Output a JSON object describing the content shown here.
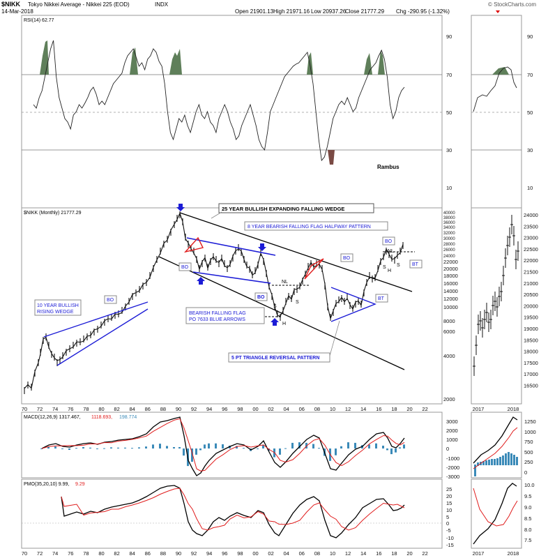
{
  "header": {
    "symbol": "$NIKK",
    "name": "Tokyo Nikkei Average - Nikkei 225 (EOD)",
    "exchange": "INDX",
    "date": "14-Mar-2018",
    "open": "Open 21901.13",
    "high": "High 21971.16",
    "low": "Low 20937.26",
    "close": "Close 21777.29",
    "chg": "Chg -290.95 (-1.32%)",
    "credit": "© StockCharts.com"
  },
  "rsi": {
    "label": "RSI(14) 62.77",
    "ticks": [
      "90",
      "70",
      "50",
      "30",
      "10"
    ],
    "signature": "Rambus"
  },
  "price": {
    "label": "$NIKK (Monthly) 21777.29",
    "left_ticks": [
      "40000",
      "38000",
      "36000",
      "34000",
      "32000",
      "30000",
      "28000",
      "26000",
      "24000",
      "22000",
      "20000",
      "18000",
      "16000",
      "14000",
      "12000",
      "10000",
      "8000",
      "6000",
      "4000",
      "2000"
    ],
    "right_ticks": [
      "24000",
      "23500",
      "23000",
      "22500",
      "22000",
      "21500",
      "21000",
      "20500",
      "20000",
      "19500",
      "19000",
      "18500",
      "18000",
      "17500",
      "17000",
      "16500"
    ]
  },
  "macd": {
    "label": "MACD(12,26,9) 1317.467,",
    "signal": "1118.693,",
    "hist": "198.774",
    "ticks": [
      "3000",
      "2000",
      "1000",
      "0",
      "-1000",
      "-2000",
      "-3000"
    ],
    "right_ticks": [
      "1250",
      "1000",
      "750",
      "500",
      "250",
      "0"
    ]
  },
  "pmo": {
    "label": "PMO(35,20,10) 9.99,",
    "signal": "9.29",
    "ticks": [
      "25",
      "20",
      "15",
      "10",
      "5",
      "0",
      "-5",
      "-10",
      "-15"
    ],
    "right_ticks": [
      "10.0",
      "9.5",
      "9.0",
      "8.5",
      "8.0",
      "7.5"
    ]
  },
  "xaxis": [
    "70",
    "72",
    "74",
    "76",
    "78",
    "80",
    "82",
    "84",
    "86",
    "88",
    "90",
    "92",
    "94",
    "96",
    "98",
    "00",
    "02",
    "04",
    "06",
    "08",
    "10",
    "12",
    "14",
    "16",
    "18",
    "20",
    "22"
  ],
  "xaxis_right": [
    "2017",
    "2018"
  ],
  "annotations": {
    "wedge_title": "25 YEAR BULLISH EXPANDING FALLING WEDGE",
    "flag_title": "8 YEAR BEARISH FALLING FLAG HALFWAY PATTERN",
    "rising_wedge": "10 YEAR BULLISH",
    "rising_wedge2": "RISING WEDGE",
    "bearish_flag": "BEARISH FALLING FLAG",
    "bearish_flag2": "PO 7633 BLUE ARROWS",
    "triangle": "5 PT TRIANGLE REVERSAL PATTERN",
    "bo": "BO",
    "bt": "BT",
    "nl": "NL",
    "s": "S",
    "h": "H"
  },
  "colors": {
    "blue": "#1c1cd6",
    "red": "#e01c1c",
    "green_fill": "#5f7f5a",
    "brown_fill": "#7a4a44",
    "hist": "#3a8ab8"
  },
  "chart_data": [
    {
      "type": "line",
      "title": "RSI(14)",
      "ylim": [
        0,
        100
      ],
      "reference_lines": [
        70,
        50,
        30
      ],
      "last_value": 62.77
    },
    {
      "type": "line",
      "title": "$NIKK (Monthly)",
      "scale": "log",
      "x": [
        "1970",
        "1972",
        "1975",
        "1980",
        "1985",
        "1989-12",
        "1992",
        "1996",
        "2000",
        "2003",
        "2007",
        "2009",
        "2012",
        "2015",
        "2018"
      ],
      "values": [
        2000,
        5300,
        4200,
        7000,
        12500,
        38900,
        17000,
        22000,
        20000,
        7600,
        18000,
        7000,
        9000,
        20000,
        21777
      ],
      "last_value": 21777.29
    },
    {
      "type": "line",
      "title": "MACD(12,26,9)",
      "series": [
        {
          "name": "MACD",
          "last": 1317.467
        },
        {
          "name": "Signal",
          "last": 1118.693
        },
        {
          "name": "Histogram",
          "last": 198.774
        }
      ]
    },
    {
      "type": "line",
      "title": "PMO(35,20,10)",
      "series": [
        {
          "name": "PMO",
          "last": 9.99
        },
        {
          "name": "Signal",
          "last": 9.29
        }
      ]
    }
  ]
}
